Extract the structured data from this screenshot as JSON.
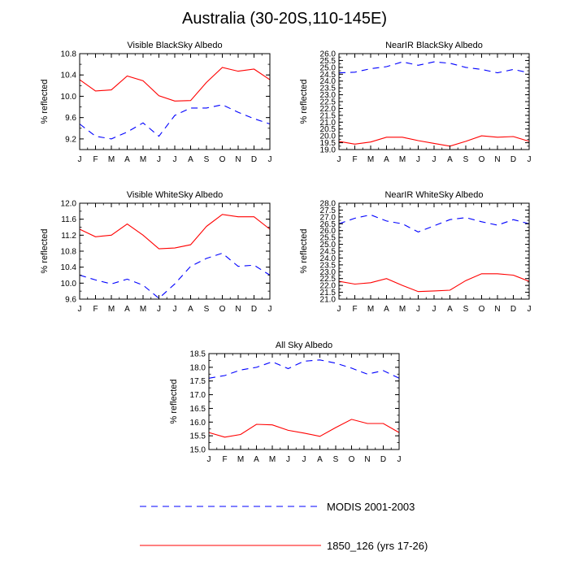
{
  "page": {
    "title": "Australia (30-20S,110-145E)"
  },
  "legend": [
    {
      "label": "MODIS 2001-2003",
      "color": "#0000ff",
      "dash": "8,6"
    },
    {
      "label": "1850_126 (yrs 17-26)",
      "color": "#ff0000",
      "dash": ""
    }
  ],
  "chart_data": [
    {
      "type": "line",
      "title": "Visible BlackSky Albedo",
      "ylabel": "% reflected",
      "categories": [
        "J",
        "F",
        "M",
        "A",
        "M",
        "J",
        "J",
        "A",
        "S",
        "O",
        "N",
        "D",
        "J"
      ],
      "ylim": [
        9.0,
        10.8
      ],
      "yticks": [
        "9.2",
        "9.6",
        "10.0",
        "10.4",
        "10.8"
      ],
      "series": [
        {
          "name": "MODIS 2001-2003",
          "values": [
            9.48,
            9.25,
            9.2,
            9.33,
            9.5,
            9.25,
            9.64,
            9.78,
            9.78,
            9.84,
            9.7,
            9.58,
            9.48
          ]
        },
        {
          "name": "1850_126 (yrs 17-26)",
          "values": [
            10.31,
            10.1,
            10.12,
            10.38,
            10.29,
            10.01,
            9.91,
            9.92,
            10.26,
            10.54,
            10.47,
            10.51,
            10.31
          ]
        }
      ]
    },
    {
      "type": "line",
      "title": "NearIR BlackSky Albedo",
      "ylabel": "% reflected",
      "categories": [
        "J",
        "F",
        "M",
        "A",
        "M",
        "J",
        "J",
        "A",
        "S",
        "O",
        "N",
        "D",
        "J"
      ],
      "ylim": [
        19.0,
        26.0
      ],
      "yticks": [
        "19.0",
        "19.5",
        "20.0",
        "20.5",
        "21.0",
        "21.5",
        "22.0",
        "22.5",
        "23.0",
        "23.5",
        "24.0",
        "24.5",
        "25.0",
        "25.5",
        "26.0"
      ],
      "series": [
        {
          "name": "MODIS 2001-2003",
          "values": [
            24.6,
            24.65,
            24.9,
            25.05,
            25.4,
            25.15,
            25.4,
            25.3,
            25.0,
            24.85,
            24.6,
            24.85,
            24.6
          ]
        },
        {
          "name": "1850_126 (yrs 17-26)",
          "values": [
            19.6,
            19.4,
            19.55,
            19.9,
            19.9,
            19.65,
            19.45,
            19.25,
            19.6,
            20.0,
            19.9,
            19.95,
            19.6
          ]
        }
      ]
    },
    {
      "type": "line",
      "title": "Visible WhiteSky Albedo",
      "ylabel": "% reflected",
      "categories": [
        "J",
        "F",
        "M",
        "A",
        "M",
        "J",
        "J",
        "A",
        "S",
        "O",
        "N",
        "D",
        "J"
      ],
      "ylim": [
        9.6,
        12.0
      ],
      "yticks": [
        "9.6",
        "10.0",
        "10.4",
        "10.8",
        "11.2",
        "11.6",
        "12.0"
      ],
      "series": [
        {
          "name": "MODIS 2001-2003",
          "values": [
            10.2,
            10.08,
            9.98,
            10.1,
            9.95,
            9.62,
            9.98,
            10.42,
            10.62,
            10.75,
            10.42,
            10.45,
            10.2
          ]
        },
        {
          "name": "1850_126 (yrs 17-26)",
          "values": [
            11.35,
            11.16,
            11.2,
            11.48,
            11.2,
            10.86,
            10.88,
            10.96,
            11.42,
            11.72,
            11.66,
            11.66,
            11.35
          ]
        }
      ]
    },
    {
      "type": "line",
      "title": "NearIR WhiteSky Albedo",
      "ylabel": "% reflected",
      "categories": [
        "J",
        "F",
        "M",
        "A",
        "M",
        "J",
        "J",
        "A",
        "S",
        "O",
        "N",
        "D",
        "J"
      ],
      "ylim": [
        21.0,
        28.0
      ],
      "yticks": [
        "21.0",
        "21.5",
        "22.0",
        "22.5",
        "23.0",
        "23.5",
        "24.0",
        "24.5",
        "25.0",
        "25.5",
        "26.0",
        "26.5",
        "27.0",
        "27.5",
        "28.0"
      ],
      "series": [
        {
          "name": "MODIS 2001-2003",
          "values": [
            26.5,
            26.9,
            27.15,
            26.7,
            26.5,
            25.9,
            26.35,
            26.8,
            26.95,
            26.65,
            26.4,
            26.8,
            26.5
          ]
        },
        {
          "name": "1850_126 (yrs 17-26)",
          "values": [
            22.3,
            22.1,
            22.2,
            22.5,
            22.0,
            21.55,
            21.6,
            21.65,
            22.35,
            22.85,
            22.85,
            22.75,
            22.3
          ]
        }
      ]
    },
    {
      "type": "line",
      "title": "All Sky Albedo",
      "ylabel": "% reflected",
      "categories": [
        "J",
        "F",
        "M",
        "A",
        "M",
        "J",
        "J",
        "A",
        "S",
        "O",
        "N",
        "D",
        "J"
      ],
      "ylim": [
        15.0,
        18.5
      ],
      "yticks": [
        "15.0",
        "15.5",
        "16.0",
        "16.5",
        "17.0",
        "17.5",
        "18.0",
        "18.5"
      ],
      "series": [
        {
          "name": "MODIS 2001-2003",
          "values": [
            17.6,
            17.7,
            17.9,
            18.0,
            18.2,
            17.95,
            18.22,
            18.27,
            18.15,
            17.97,
            17.75,
            17.88,
            17.6
          ]
        },
        {
          "name": "1850_126 (yrs 17-26)",
          "values": [
            15.62,
            15.45,
            15.55,
            15.92,
            15.9,
            15.7,
            15.6,
            15.48,
            15.8,
            16.1,
            15.95,
            15.95,
            15.62
          ]
        }
      ]
    }
  ]
}
